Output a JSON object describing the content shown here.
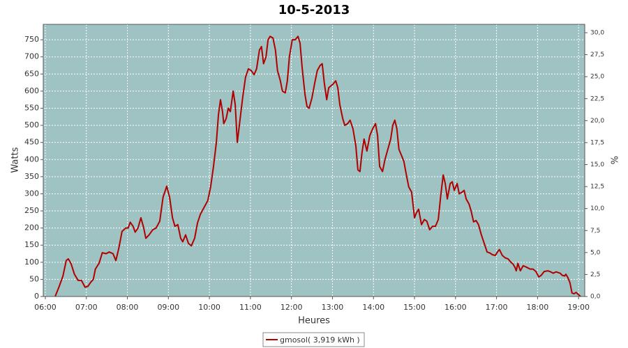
{
  "chart_data": {
    "type": "line",
    "title": "10-5-2013",
    "x_label": "Heures",
    "y_label": "Watts",
    "y2_label": "%",
    "xlim": [
      5.95,
      19.15
    ],
    "xticks": [
      {
        "value": 6,
        "label": "06:00"
      },
      {
        "value": 7,
        "label": "07:00"
      },
      {
        "value": 8,
        "label": "08:00"
      },
      {
        "value": 9,
        "label": "09:00"
      },
      {
        "value": 10,
        "label": "10:00"
      },
      {
        "value": 11,
        "label": "11:00"
      },
      {
        "value": 12,
        "label": "12:00"
      },
      {
        "value": 13,
        "label": "13:00"
      },
      {
        "value": 14,
        "label": "14:00"
      },
      {
        "value": 15,
        "label": "15:00"
      },
      {
        "value": 16,
        "label": "16:00"
      },
      {
        "value": 17,
        "label": "17:00"
      },
      {
        "value": 18,
        "label": "18:00"
      },
      {
        "value": 19,
        "label": "19:00"
      }
    ],
    "ylim": [
      0,
      795
    ],
    "yticks": [
      0,
      50,
      100,
      150,
      200,
      250,
      300,
      350,
      400,
      450,
      500,
      550,
      600,
      650,
      700,
      750
    ],
    "y2lim": [
      0,
      30.95
    ],
    "y2ticks": [
      {
        "value": 0,
        "label": "0,0"
      },
      {
        "value": 2.5,
        "label": "2,5"
      },
      {
        "value": 5,
        "label": "5,0"
      },
      {
        "value": 7.5,
        "label": "7,5"
      },
      {
        "value": 10,
        "label": "10,0"
      },
      {
        "value": 12.5,
        "label": "12,5"
      },
      {
        "value": 15,
        "label": "15,0"
      },
      {
        "value": 17.5,
        "label": "17,5"
      },
      {
        "value": 20,
        "label": "20,0"
      },
      {
        "value": 22.5,
        "label": "22,5"
      },
      {
        "value": 25,
        "label": "25,0"
      },
      {
        "value": 27.5,
        "label": "27,5"
      },
      {
        "value": 30,
        "label": "30,0"
      }
    ],
    "grid": true,
    "legend": "bottom",
    "x": [
      6.24,
      6.34,
      6.43,
      6.51,
      6.56,
      6.63,
      6.71,
      6.8,
      6.88,
      6.97,
      7.04,
      7.11,
      7.17,
      7.22,
      7.31,
      7.39,
      7.48,
      7.56,
      7.65,
      7.72,
      7.79,
      7.87,
      7.96,
      8.02,
      8.07,
      8.14,
      8.19,
      8.26,
      8.33,
      8.4,
      8.45,
      8.53,
      8.62,
      8.7,
      8.79,
      8.87,
      8.96,
      9.03,
      9.1,
      9.16,
      9.23,
      9.3,
      9.35,
      9.42,
      9.49,
      9.56,
      9.64,
      9.71,
      9.78,
      9.86,
      9.96,
      10.03,
      10.1,
      10.17,
      10.22,
      10.27,
      10.32,
      10.35,
      10.41,
      10.46,
      10.51,
      10.58,
      10.63,
      10.68,
      10.75,
      10.81,
      10.88,
      10.95,
      11.02,
      11.09,
      11.15,
      11.22,
      11.27,
      11.32,
      11.38,
      11.43,
      11.48,
      11.55,
      11.61,
      11.66,
      11.73,
      11.78,
      11.85,
      11.9,
      11.95,
      12.02,
      12.09,
      12.16,
      12.21,
      12.26,
      12.33,
      12.38,
      12.43,
      12.5,
      12.57,
      12.63,
      12.7,
      12.75,
      12.8,
      12.86,
      12.91,
      12.96,
      13.01,
      13.08,
      13.13,
      13.18,
      13.25,
      13.3,
      13.37,
      13.43,
      13.5,
      13.57,
      13.62,
      13.67,
      13.72,
      13.77,
      13.84,
      13.91,
      13.98,
      14.05,
      14.1,
      14.15,
      14.22,
      14.28,
      14.35,
      14.42,
      14.47,
      14.52,
      14.57,
      14.62,
      14.69,
      14.74,
      14.81,
      14.86,
      14.93,
      15.0,
      15.05,
      15.1,
      15.17,
      15.24,
      15.3,
      15.37,
      15.44,
      15.51,
      15.58,
      15.64,
      15.7,
      15.75,
      15.8,
      15.87,
      15.92,
      15.97,
      16.04,
      16.09,
      16.16,
      16.21,
      16.26,
      16.33,
      16.38,
      16.44,
      16.5,
      16.56,
      16.63,
      16.7,
      16.77,
      16.84,
      16.9,
      16.97,
      17.04,
      17.07,
      17.14,
      17.21,
      17.28,
      17.35,
      17.4,
      17.45,
      17.48,
      17.52,
      17.58,
      17.65,
      17.74,
      17.82,
      17.89,
      17.96,
      18.03,
      18.09,
      18.16,
      18.25,
      18.32,
      18.38,
      18.45,
      18.5,
      18.55,
      18.6,
      18.66,
      18.69,
      18.74,
      18.79,
      18.84,
      18.89,
      18.94,
      19.0,
      19.05
    ],
    "series": [
      {
        "name": "gmosol( 3,919 kWh )",
        "color": "#b00000",
        "values": [
          0,
          30,
          60,
          105,
          110,
          95,
          65,
          47,
          47,
          27,
          30,
          42,
          50,
          80,
          97,
          128,
          125,
          130,
          125,
          105,
          140,
          190,
          200,
          200,
          217,
          205,
          188,
          200,
          230,
          200,
          170,
          180,
          195,
          200,
          220,
          290,
          322,
          290,
          230,
          205,
          210,
          170,
          160,
          180,
          155,
          148,
          170,
          215,
          240,
          258,
          280,
          320,
          380,
          450,
          530,
          575,
          540,
          505,
          520,
          550,
          540,
          600,
          560,
          450,
          520,
          580,
          640,
          665,
          660,
          648,
          665,
          720,
          730,
          680,
          700,
          750,
          760,
          755,
          720,
          660,
          630,
          600,
          595,
          630,
          700,
          750,
          750,
          760,
          740,
          670,
          590,
          555,
          550,
          580,
          625,
          660,
          675,
          680,
          625,
          575,
          610,
          615,
          620,
          630,
          610,
          560,
          520,
          500,
          505,
          515,
          490,
          440,
          370,
          365,
          420,
          460,
          425,
          470,
          490,
          505,
          470,
          380,
          365,
          400,
          430,
          460,
          500,
          515,
          490,
          430,
          410,
          395,
          350,
          320,
          305,
          230,
          245,
          255,
          210,
          225,
          220,
          195,
          205,
          205,
          225,
          295,
          355,
          330,
          285,
          330,
          335,
          310,
          330,
          300,
          305,
          310,
          285,
          270,
          250,
          218,
          222,
          210,
          180,
          155,
          130,
          127,
          122,
          120,
          133,
          137,
          120,
          113,
          110,
          100,
          95,
          85,
          75,
          97,
          75,
          90,
          85,
          80,
          80,
          73,
          57,
          62,
          73,
          75,
          72,
          68,
          72,
          70,
          68,
          62,
          60,
          65,
          55,
          40,
          10,
          8,
          12,
          5,
          0
        ]
      }
    ]
  }
}
